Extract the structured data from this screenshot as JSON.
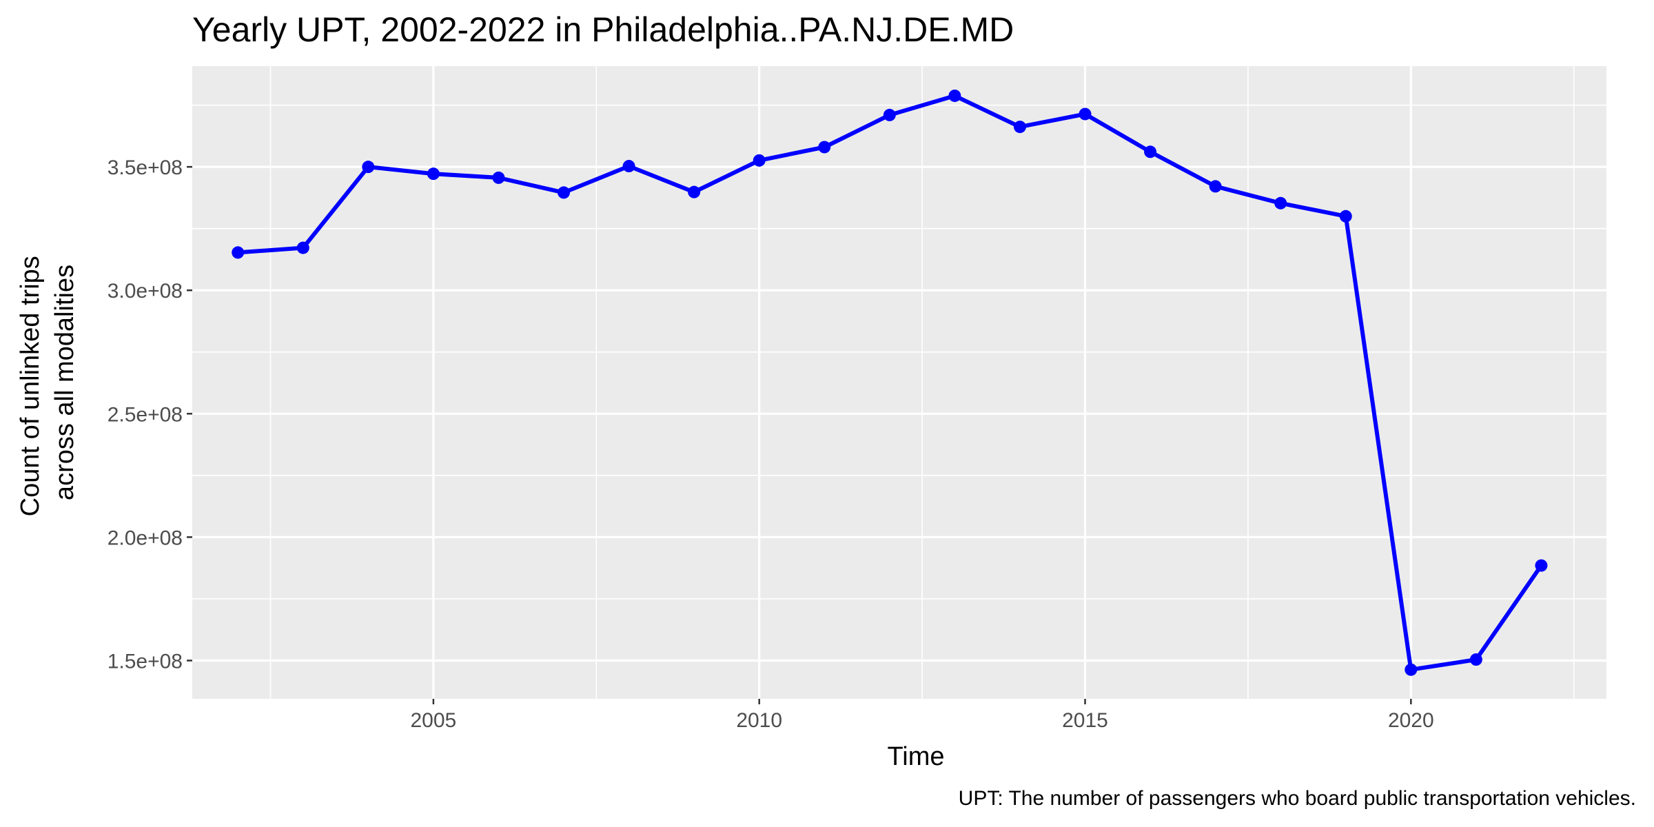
{
  "chart_data": {
    "type": "line",
    "title": "Yearly UPT, 2002-2022 in Philadelphia..PA.NJ.DE.MD",
    "xlabel": "Time",
    "ylabel_lines": [
      "Count of unlinked trips",
      "across all modalities"
    ],
    "caption": "UPT: The number of passengers who board public transportation vehicles.",
    "x": [
      2002,
      2003,
      2004,
      2005,
      2006,
      2007,
      2008,
      2009,
      2010,
      2011,
      2012,
      2013,
      2014,
      2015,
      2016,
      2017,
      2018,
      2019,
      2020,
      2021,
      2022
    ],
    "series": [
      {
        "values": [
          315300000,
          317200000,
          350000000,
          347200000,
          345600000,
          339600000,
          350300000,
          339800000,
          352600000,
          358000000,
          371000000,
          378800000,
          366200000,
          371400000,
          356100000,
          342100000,
          335300000,
          330000000,
          146300000,
          150400000,
          188500000
        ],
        "color": "#0000ff"
      }
    ],
    "xlim": [
      2001.3,
      2023.0
    ],
    "ylim": [
      134500000,
      390800000
    ],
    "x_ticks": [
      {
        "value": 2005,
        "label": "2005"
      },
      {
        "value": 2010,
        "label": "2010"
      },
      {
        "value": 2015,
        "label": "2015"
      },
      {
        "value": 2020,
        "label": "2020"
      }
    ],
    "y_ticks": [
      {
        "value": 150000000,
        "label": "1.5e+08"
      },
      {
        "value": 200000000,
        "label": "2.0e+08"
      },
      {
        "value": 250000000,
        "label": "2.5e+08"
      },
      {
        "value": 300000000,
        "label": "3.0e+08"
      },
      {
        "value": 350000000,
        "label": "3.5e+08"
      }
    ],
    "panel_color": "#ebebeb",
    "grid_color": "#ffffff",
    "grid": true,
    "legend": "none"
  }
}
